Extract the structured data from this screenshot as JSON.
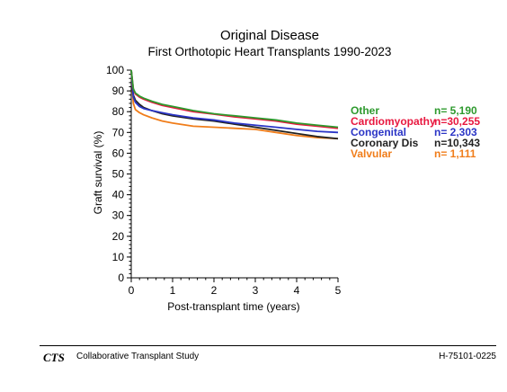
{
  "chart_data": {
    "type": "line",
    "title": "Original Disease",
    "subtitle": "First Orthotopic Heart Transplants 1990-2023",
    "xlabel": "Post-transplant time (years)",
    "ylabel": "Graft survival (%)",
    "xlim": [
      0,
      5
    ],
    "ylim": [
      0,
      100
    ],
    "x_ticks": [
      "0",
      "1",
      "2",
      "3",
      "4",
      "5"
    ],
    "y_ticks": [
      "0",
      "10",
      "20",
      "30",
      "40",
      "50",
      "60",
      "70",
      "80",
      "90",
      "100"
    ],
    "grid": false,
    "legend_position": "right",
    "series": [
      {
        "name": "Other",
        "n_label": "n= 5,190",
        "color": "#2e9a2e",
        "x": [
          0,
          0.05,
          0.1,
          0.2,
          0.3,
          0.5,
          0.75,
          1,
          1.5,
          2,
          2.5,
          3,
          3.5,
          4,
          4.5,
          5
        ],
        "y": [
          100,
          91,
          89,
          87.5,
          86.5,
          85,
          83.5,
          82.5,
          80.5,
          79,
          78,
          77,
          76,
          74.5,
          73.5,
          72.5
        ]
      },
      {
        "name": "Cardiomyopathy",
        "n_label": "n=30,255",
        "color": "#e8173f",
        "x": [
          0,
          0.05,
          0.1,
          0.2,
          0.3,
          0.5,
          0.75,
          1,
          1.5,
          2,
          2.5,
          3,
          3.5,
          4,
          4.5,
          5
        ],
        "y": [
          100,
          91,
          88.5,
          87,
          86,
          84.5,
          83,
          82,
          80,
          78.8,
          77.5,
          76.5,
          75.5,
          74,
          73,
          72
        ]
      },
      {
        "name": "Congenital",
        "n_label": "n= 2,303",
        "color": "#2b35c6",
        "x": [
          0,
          0.05,
          0.1,
          0.2,
          0.3,
          0.5,
          0.75,
          1,
          1.5,
          2,
          2.5,
          3,
          3.5,
          4,
          4.5,
          5
        ],
        "y": [
          100,
          87,
          84.5,
          82.5,
          81.5,
          80.5,
          79.5,
          78.5,
          77,
          76,
          74.5,
          73.5,
          72.5,
          71.5,
          70.5,
          70
        ]
      },
      {
        "name": "Coronary Dis",
        "n_label": "n=10,343",
        "color": "#222222",
        "x": [
          0,
          0.05,
          0.1,
          0.2,
          0.3,
          0.5,
          0.75,
          1,
          1.5,
          2,
          2.5,
          3,
          3.5,
          4,
          4.5,
          5
        ],
        "y": [
          100,
          88,
          85.5,
          83.5,
          82,
          80.5,
          79,
          78,
          76.5,
          75.5,
          74,
          72.5,
          71,
          69.5,
          68,
          67
        ]
      },
      {
        "name": "Valvular",
        "n_label": "n= 1,111",
        "color": "#f07d1a",
        "x": [
          0,
          0.05,
          0.1,
          0.2,
          0.3,
          0.5,
          0.75,
          1,
          1.5,
          2,
          2.5,
          3,
          3.5,
          4,
          4.5,
          5
        ],
        "y": [
          100,
          84,
          81,
          79.5,
          78.5,
          77,
          75.5,
          74.5,
          73,
          72.5,
          72,
          71.5,
          70,
          68.5,
          67.5,
          67
        ]
      }
    ]
  },
  "footer": {
    "logo": "CTS",
    "org": "Collaborative Transplant Study",
    "id": "H-75101-0225"
  }
}
